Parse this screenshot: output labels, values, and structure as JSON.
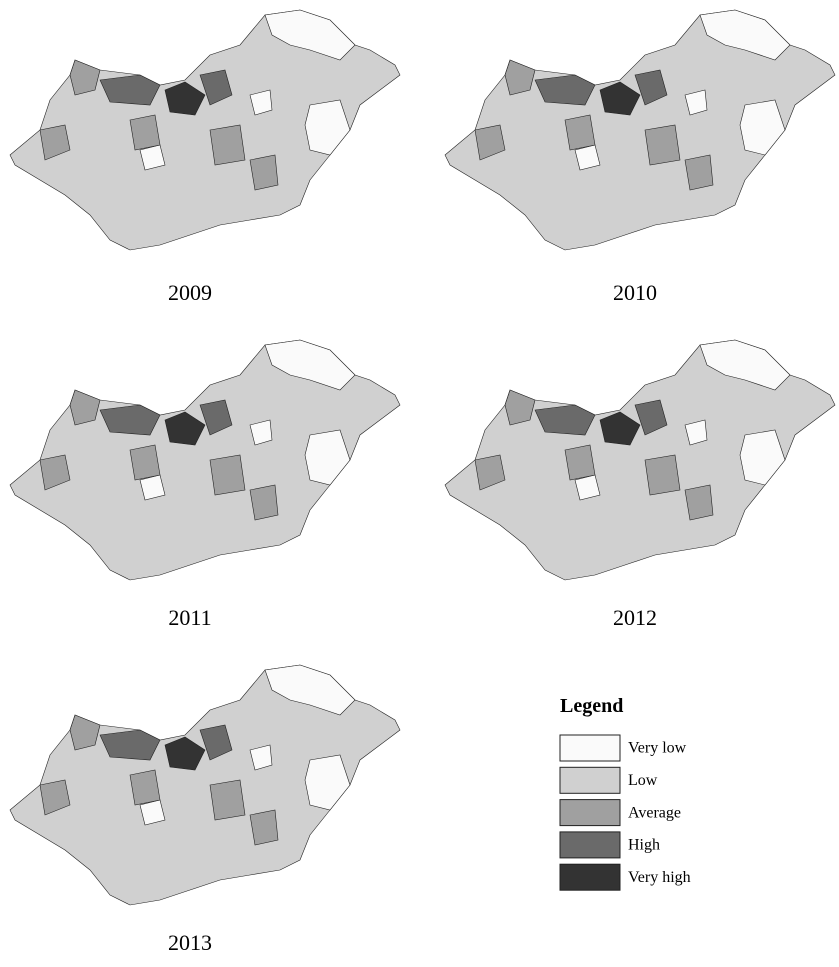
{
  "maps": [
    {
      "year": "2009"
    },
    {
      "year": "2010"
    },
    {
      "year": "2011"
    },
    {
      "year": "2012"
    },
    {
      "year": "2013"
    }
  ],
  "legend": {
    "title": "Legend",
    "items": [
      {
        "label": "Very low",
        "color": "#fafafa"
      },
      {
        "label": "Low",
        "color": "#d0d0d0"
      },
      {
        "label": "Average",
        "color": "#a0a0a0"
      },
      {
        "label": "High",
        "color": "#6a6a6a"
      },
      {
        "label": "Very high",
        "color": "#333333"
      }
    ]
  }
}
